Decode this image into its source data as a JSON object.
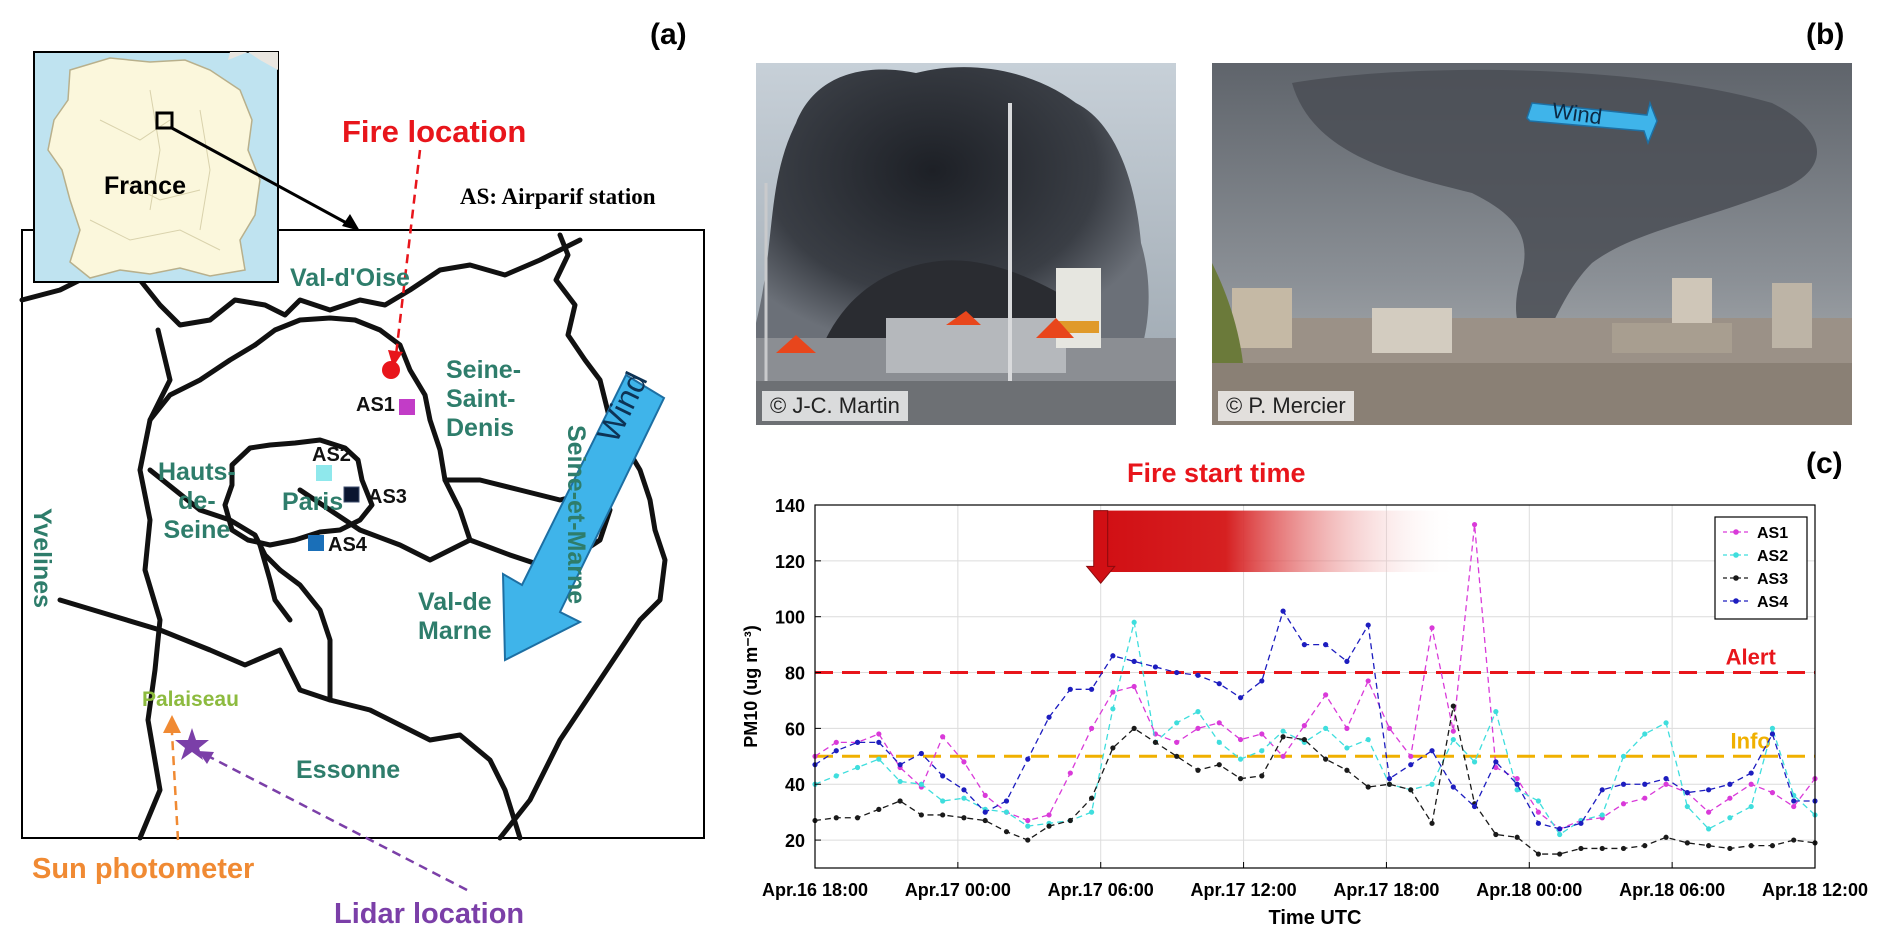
{
  "panels": {
    "a": "(a)",
    "b": "(b)",
    "c": "(c)"
  },
  "map": {
    "inset_label": "France",
    "fire_label": "Fire location",
    "station_legend": "AS: Airparif station",
    "regions": {
      "val_doise": "Val-d'Oise",
      "seine_saint_denis": "Seine-\nSaint-\nDenis",
      "seine_et_marne": "Seine-et-Marne",
      "hauts_de_seine": "Hauts-\nde-\nSeine",
      "paris": "Paris",
      "yvelines": "Yvelines",
      "val_de_marne": "Val-de\nMarne",
      "essonne": "Essonne",
      "palaiseau": "Palaiseau"
    },
    "wind_label": "Wind",
    "stations": [
      "AS1",
      "AS2",
      "AS3",
      "AS4"
    ],
    "sun_photometer_label": "Sun photometer",
    "lidar_label": "Lidar location",
    "colors": {
      "fire": "#e8151b",
      "as1": "#c23cc7",
      "as2": "#8fe8ec",
      "as3": "#0a1530",
      "as4": "#1a6fb8",
      "region_text": "#2e7d6b",
      "palaiseau": "#8dbb3f",
      "sun": "#f08a33",
      "lidar": "#7b3fa8",
      "wind": "#3fb4ea"
    }
  },
  "photos": {
    "left_credit": "© J-C. Martin",
    "right_credit": "© P. Mercier",
    "wind_label": "Wind"
  },
  "chart_data": {
    "type": "line",
    "fire_label": "Fire start time",
    "xlabel": "Time UTC",
    "ylabel": "PM10 (ug m⁻³)",
    "ylim": [
      10,
      140
    ],
    "yticks": [
      20,
      40,
      60,
      80,
      100,
      120,
      140
    ],
    "xlim": [
      0,
      42
    ],
    "xticks": [
      0,
      6,
      12,
      18,
      24,
      30,
      36,
      42
    ],
    "xtick_labels": [
      "Apr.16 18:00",
      "Apr.17 00:00",
      "Apr.17 06:00",
      "Apr.17 12:00",
      "Apr.17 18:00",
      "Apr.18 00:00",
      "Apr.18 06:00",
      "Apr.18 12:00"
    ],
    "grid": true,
    "legend_position": "top-right",
    "fire_start_x": 12,
    "thresholds": [
      {
        "label": "Alert",
        "value": 80,
        "color": "#e8151b"
      },
      {
        "label": "Info",
        "value": 50,
        "color": "#f0b000"
      }
    ],
    "series": [
      {
        "name": "AS1",
        "color": "#d93ad9",
        "values": [
          50,
          55,
          55,
          58,
          46,
          39,
          57,
          48,
          36,
          30,
          27,
          29,
          44,
          60,
          73,
          75,
          58,
          55,
          60,
          62,
          56,
          58,
          50,
          61,
          72,
          60,
          77,
          60,
          50,
          96,
          59,
          133,
          46,
          42,
          30,
          24,
          27,
          28,
          33,
          35,
          40,
          37,
          30,
          35,
          40,
          37,
          32,
          42
        ]
      },
      {
        "name": "AS2",
        "color": "#3fdedd",
        "values": [
          40,
          43,
          46,
          49,
          41,
          40,
          34,
          35,
          31,
          30,
          25,
          26,
          27,
          30,
          67,
          98,
          55,
          62,
          66,
          55,
          49,
          52,
          59,
          55,
          60,
          53,
          56,
          40,
          38,
          40,
          56,
          48,
          66,
          38,
          34,
          22,
          27,
          29,
          50,
          58,
          62,
          32,
          24,
          28,
          32,
          60,
          36,
          29
        ]
      },
      {
        "name": "AS3",
        "color": "#1a1a1a",
        "values": [
          27,
          28,
          28,
          31,
          34,
          29,
          29,
          28,
          27,
          23,
          20,
          25,
          27,
          35,
          53,
          60,
          55,
          50,
          45,
          47,
          42,
          43,
          57,
          56,
          49,
          45,
          39,
          40,
          38,
          26,
          68,
          33,
          22,
          21,
          15,
          15,
          17,
          17,
          17,
          18,
          21,
          19,
          18,
          17,
          18,
          18,
          20,
          19
        ]
      },
      {
        "name": "AS4",
        "color": "#1d1dbf",
        "values": [
          47,
          52,
          55,
          55,
          47,
          51,
          43,
          38,
          30,
          34,
          49,
          64,
          74,
          74,
          86,
          84,
          82,
          80,
          79,
          76,
          71,
          77,
          102,
          90,
          90,
          84,
          97,
          42,
          47,
          52,
          39,
          32,
          48,
          40,
          26,
          24,
          26,
          38,
          40,
          40,
          42,
          37,
          38,
          40,
          44,
          58,
          34,
          34
        ]
      }
    ]
  }
}
